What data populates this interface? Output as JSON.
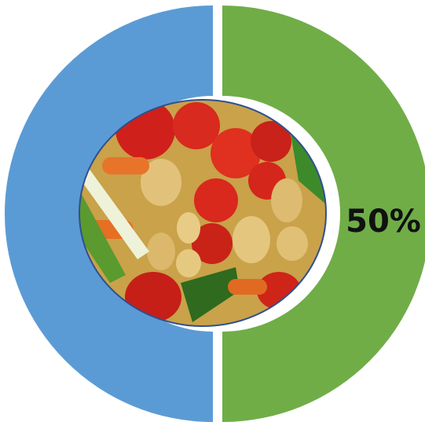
{
  "chart_data": {
    "type": "donut",
    "values": [
      50,
      50
    ],
    "value_labels": [
      "50%",
      null
    ],
    "colors": [
      "#70ad47",
      "#5b9bd5"
    ]
  }
}
